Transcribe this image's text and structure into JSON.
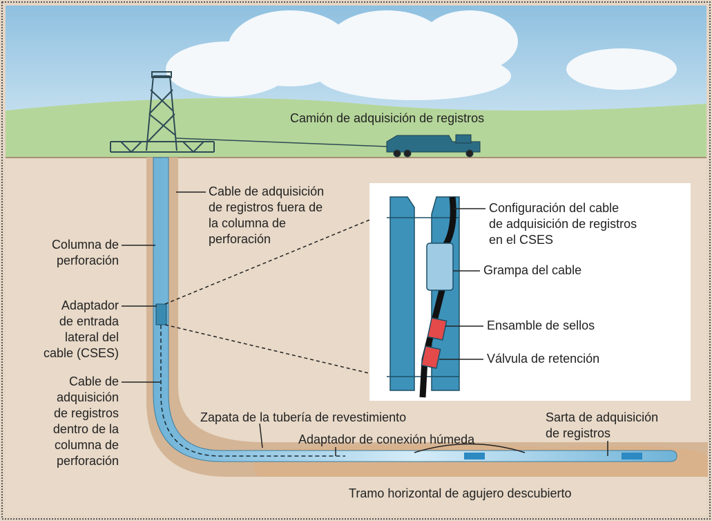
{
  "labels": [
    {
      "lines": [
        "Camión de adquisición de registros"
      ]
    },
    {
      "lines": [
        "Cable de adquisición",
        "de registros fuera de",
        "la columna de",
        "perforación"
      ]
    },
    {
      "lines": [
        "Columna de",
        "perforación"
      ]
    },
    {
      "lines": [
        "Adaptador",
        "de entrada",
        "lateral del",
        "cable (CSES)"
      ]
    },
    {
      "lines": [
        "Cable de",
        "adquisición",
        "de registros",
        "dentro de la",
        "columna de",
        "perforación"
      ]
    },
    {
      "lines": [
        "Configuración del cable",
        "de adquisición de registros",
        "en el CSES"
      ]
    },
    {
      "lines": [
        "Grampa del cable"
      ]
    },
    {
      "lines": [
        "Ensamble de sellos"
      ]
    },
    {
      "lines": [
        "Válvula de retención"
      ]
    },
    {
      "lines": [
        "Zapata de la tubería de revestimiento"
      ]
    },
    {
      "lines": [
        "Adaptador de conexión húmeda"
      ]
    },
    {
      "lines": [
        "Sarta de adquisición",
        "de registros"
      ]
    },
    {
      "lines": [
        "Tramo horizontal de agujero descubierto"
      ]
    }
  ]
}
